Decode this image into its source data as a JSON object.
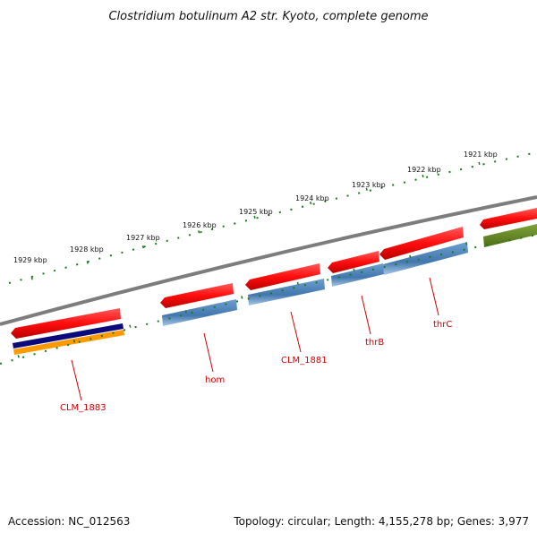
{
  "title": "Clostridium botulinum A2 str. Kyoto, complete genome",
  "footer": {
    "accession": "Accession: NC_012563",
    "summary": "Topology: circular; Length: 4,155,278 bp; Genes: 3,977"
  },
  "ruler_labels": [
    "1921 kbp",
    "1922 kbp",
    "1923 kbp",
    "1924 kbp",
    "1925 kbp",
    "1926 kbp",
    "1927 kbp",
    "1928 kbp",
    "1929 kbp"
  ],
  "gene_labels": [
    "thrC",
    "thrB",
    "CLM_1881",
    "hom",
    "CLM_1883"
  ],
  "colors": {
    "gene": "#ff1a1a",
    "cds": "#4a7fb5",
    "backbone": "#808080",
    "ruler": "#1a7a1a",
    "label": "#d40000",
    "olive": "#6b8e23",
    "navy": "#0a0a7a",
    "orange": "#ff9900"
  }
}
